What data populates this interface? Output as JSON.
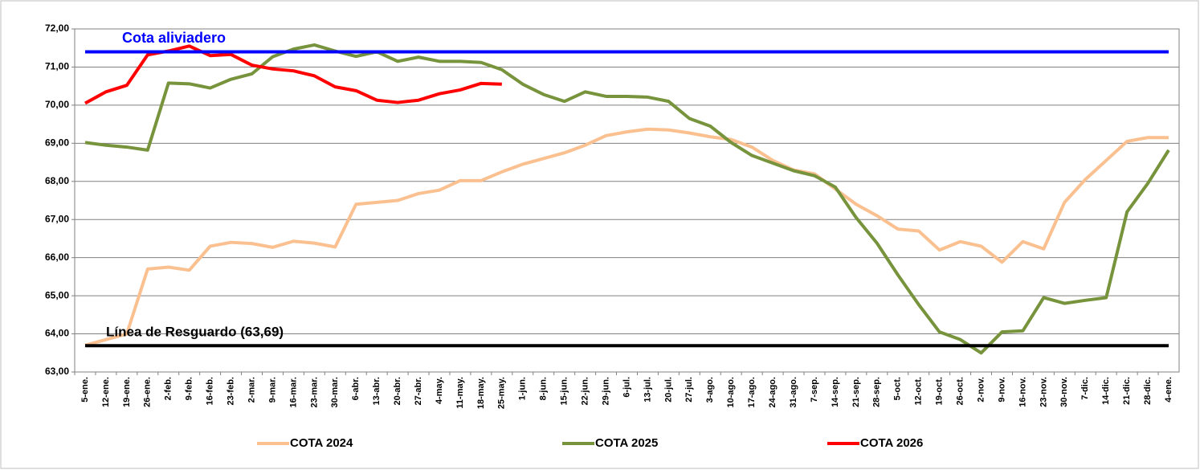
{
  "chart_data": {
    "type": "line",
    "categories": [
      "5-ene.",
      "12-ene.",
      "19-ene.",
      "26-ene.",
      "2-feb.",
      "9-feb.",
      "16-feb.",
      "23-feb.",
      "2-mar.",
      "9-mar.",
      "16-mar.",
      "23-mar.",
      "30-mar.",
      "6-abr.",
      "13-abr.",
      "20-abr.",
      "27-abr.",
      "4-may.",
      "11-may.",
      "18-may.",
      "25-may.",
      "1-jun.",
      "8-jun.",
      "15-jun.",
      "22-jun.",
      "29-jun.",
      "6-jul.",
      "13-jul.",
      "20-jul.",
      "27-jul.",
      "3-ago.",
      "10-ago.",
      "17-ago.",
      "24-ago.",
      "31-ago.",
      "7-sep.",
      "14-sep.",
      "21-sep.",
      "28-sep.",
      "5-oct.",
      "12-oct.",
      "19-oct.",
      "26-oct.",
      "2-nov.",
      "9-nov.",
      "16-nov.",
      "23-nov.",
      "30-nov.",
      "7-dic.",
      "14-dic.",
      "21-dic.",
      "28-dic.",
      "4-ene."
    ],
    "series": [
      {
        "name": "COTA 2024",
        "color": "#fac090",
        "values": [
          63.7,
          63.85,
          64.0,
          65.7,
          65.75,
          65.67,
          66.3,
          66.4,
          66.37,
          66.27,
          66.43,
          66.38,
          66.28,
          67.4,
          67.45,
          67.5,
          67.68,
          67.77,
          68.02,
          68.02,
          68.25,
          68.45,
          68.6,
          68.75,
          68.95,
          69.2,
          69.3,
          69.37,
          69.35,
          69.27,
          69.17,
          69.1,
          68.9,
          68.55,
          68.3,
          68.2,
          67.8,
          67.4,
          67.1,
          66.75,
          66.7,
          66.2,
          66.42,
          66.3,
          65.88,
          66.42,
          66.23,
          67.45,
          68.05,
          68.55,
          69.05,
          69.15,
          69.15
        ]
      },
      {
        "name": "COTA 2025",
        "color": "#77933c",
        "values": [
          69.02,
          68.95,
          68.9,
          68.82,
          70.58,
          70.56,
          70.45,
          70.68,
          70.82,
          71.27,
          71.47,
          71.58,
          71.42,
          71.28,
          71.4,
          71.15,
          71.26,
          71.15,
          71.15,
          71.12,
          70.93,
          70.55,
          70.28,
          70.1,
          70.35,
          70.23,
          70.23,
          70.21,
          70.1,
          69.65,
          69.45,
          69.02,
          68.68,
          68.48,
          68.28,
          68.15,
          67.85,
          67.05,
          66.38,
          65.55,
          64.77,
          64.05,
          63.85,
          63.5,
          64.05,
          64.08,
          64.95,
          64.8,
          64.88,
          64.95,
          67.2,
          67.95,
          68.82
        ]
      },
      {
        "name": "COTA 2026",
        "color": "#ff0000",
        "values": [
          70.05,
          70.35,
          70.52,
          71.32,
          71.42,
          71.55,
          71.3,
          71.33,
          71.05,
          70.95,
          70.9,
          70.77,
          70.48,
          70.38,
          70.13,
          70.07,
          70.13,
          70.3,
          70.4,
          70.57,
          70.55,
          null,
          null,
          null,
          null,
          null,
          null,
          null,
          null,
          null,
          null,
          null,
          null,
          null,
          null,
          null,
          null,
          null,
          null,
          null,
          null,
          null,
          null,
          null,
          null,
          null,
          null,
          null,
          null,
          null,
          null,
          null,
          null
        ]
      }
    ],
    "reference_lines": [
      {
        "label": "Cota aliviadero",
        "value": 71.4,
        "color": "#0000ff"
      },
      {
        "label": "Línea de Resguardo (63,69)",
        "value": 63.69,
        "color": "#000000"
      }
    ],
    "ylim": [
      63,
      72
    ],
    "yticks": [
      {
        "value": 63,
        "label": "63,00"
      },
      {
        "value": 64,
        "label": "64,00"
      },
      {
        "value": 65,
        "label": "65,00"
      },
      {
        "value": 66,
        "label": "66,00"
      },
      {
        "value": 67,
        "label": "67,00"
      },
      {
        "value": 68,
        "label": "68,00"
      },
      {
        "value": 69,
        "label": "69,00"
      },
      {
        "value": 70,
        "label": "70,00"
      },
      {
        "value": 71,
        "label": "71,00"
      },
      {
        "value": 72,
        "label": "72,00"
      }
    ],
    "grid": true,
    "legend": "bottom"
  }
}
